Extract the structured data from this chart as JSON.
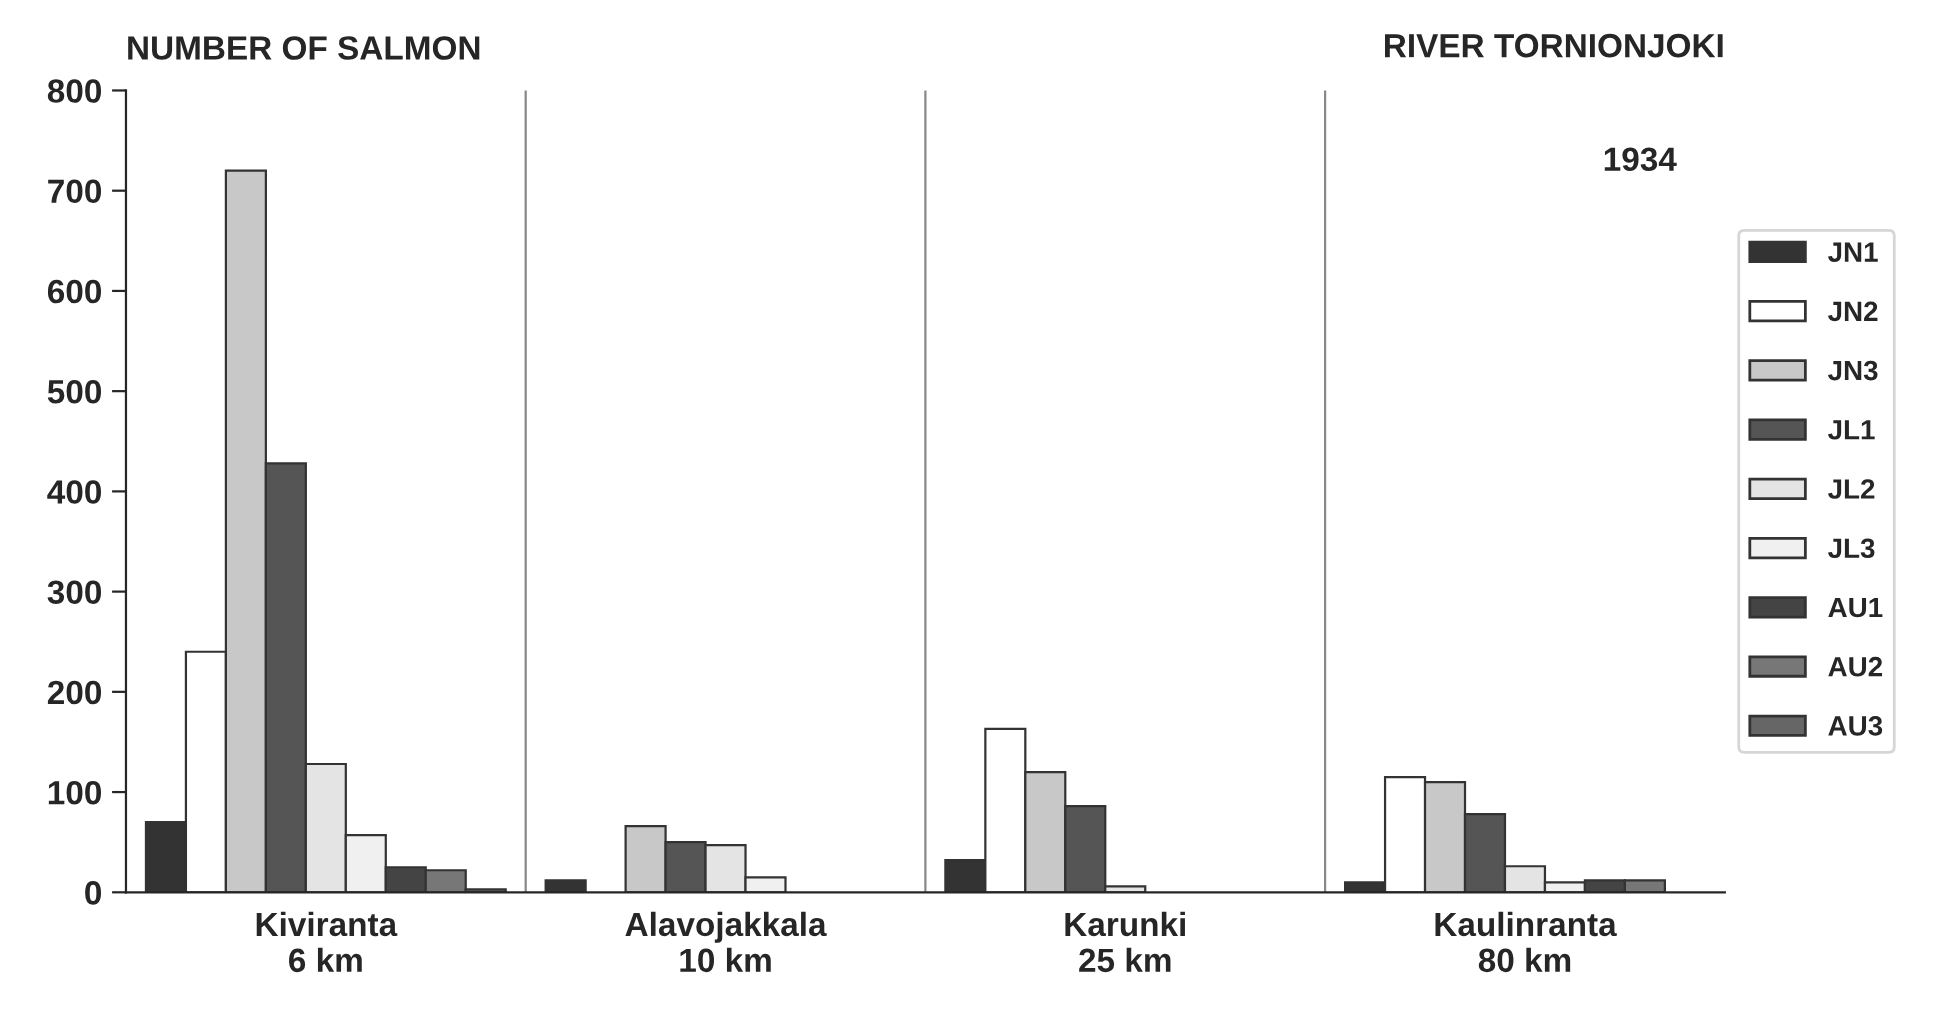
{
  "chart_data": {
    "type": "bar",
    "title": "RIVER TORNIONJOKI",
    "ylabel": "NUMBER OF SALMON",
    "annotations": [
      "1934"
    ],
    "categories": [
      "Kiviranta\n6 km",
      "Alavojakkala\n10 km",
      "Karunki\n25 km",
      "Kaulinranta\n80 km"
    ],
    "series": [
      {
        "name": "JN1",
        "color": "#333333",
        "values": [
          70,
          12,
          32,
          10
        ]
      },
      {
        "name": "JN2",
        "color": "#ffffff",
        "values": [
          240,
          null,
          163,
          115
        ]
      },
      {
        "name": "JN3",
        "color": "#c8c8c8",
        "values": [
          720,
          66,
          120,
          110
        ]
      },
      {
        "name": "JL1",
        "color": "#555555",
        "values": [
          428,
          50,
          86,
          78
        ]
      },
      {
        "name": "JL2",
        "color": "#e4e4e4",
        "values": [
          128,
          47,
          6,
          26
        ]
      },
      {
        "name": "JL3",
        "color": "#f0f0f0",
        "values": [
          57,
          15,
          null,
          10
        ]
      },
      {
        "name": "AU1",
        "color": "#444444",
        "values": [
          25,
          null,
          null,
          12
        ]
      },
      {
        "name": "AU2",
        "color": "#777777",
        "values": [
          22,
          null,
          null,
          12
        ]
      },
      {
        "name": "AU3",
        "color": "#666666",
        "values": [
          3,
          null,
          null,
          null
        ]
      }
    ],
    "ylim": [
      0,
      800
    ],
    "yticks": [
      0,
      100,
      200,
      300,
      400,
      500,
      600,
      700,
      800
    ],
    "grid": "x",
    "legend": "right"
  }
}
